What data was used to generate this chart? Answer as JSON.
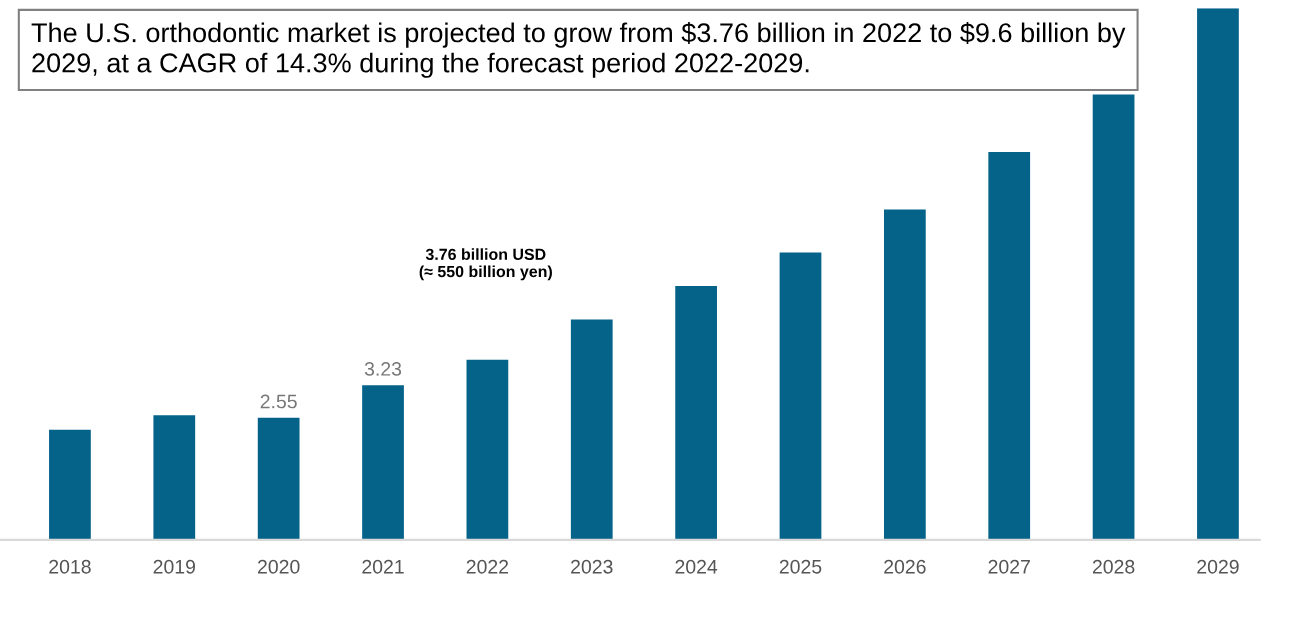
{
  "chart_data": {
    "type": "bar",
    "categories": [
      "2018",
      "2019",
      "2020",
      "2021",
      "2022",
      "2023",
      "2024",
      "2025",
      "2026",
      "2027",
      "2028",
      "2029"
    ],
    "values": [
      2.3,
      2.6,
      2.55,
      3.23,
      3.76,
      4.6,
      5.3,
      6.0,
      6.9,
      8.1,
      9.3,
      11.1
    ],
    "color": "#05638a",
    "value_labels": [
      null,
      null,
      "2.55",
      "3.23",
      null,
      null,
      null,
      null,
      null,
      null,
      null,
      null
    ],
    "annotations": [
      "The U.S. orthodontic market is projected to grow from $3.76 billion in 2022 to $9.6 billion by 2029, at a CAGR of 14.3% during the forecast period 2022-2029.",
      "3.76 billion USD\n(≈ 550 billion yen)"
    ],
    "grid": false,
    "legend": false
  }
}
